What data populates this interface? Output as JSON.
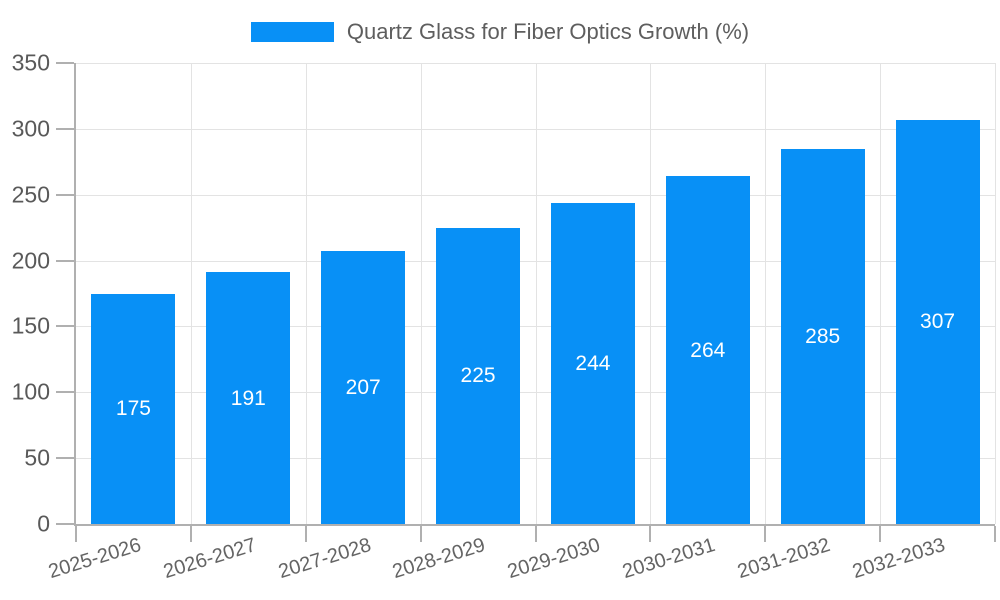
{
  "legend": {
    "label": "Quartz Glass for Fiber Optics Growth (%)"
  },
  "colors": {
    "bar": "#0890f6",
    "axis": "#b0b0b0",
    "grid": "#e3e3e3",
    "axis_text": "#595959",
    "value_text": "#ffffff"
  },
  "chart_data": {
    "type": "bar",
    "title": "Quartz Glass for Fiber Optics Growth (%)",
    "categories": [
      "2025-2026",
      "2026-2027",
      "2027-2028",
      "2028-2029",
      "2029-2030",
      "2030-2031",
      "2031-2032",
      "2032-2033"
    ],
    "values": [
      175,
      191,
      207,
      225,
      244,
      264,
      285,
      307
    ],
    "xlabel": "",
    "ylabel": "",
    "ylim": [
      0,
      350
    ],
    "yticks": [
      0,
      50,
      100,
      150,
      200,
      250,
      300,
      350
    ],
    "grid": "both",
    "legend_position": "top",
    "bar_color": "#0890f6",
    "value_labels": "inside-center"
  }
}
